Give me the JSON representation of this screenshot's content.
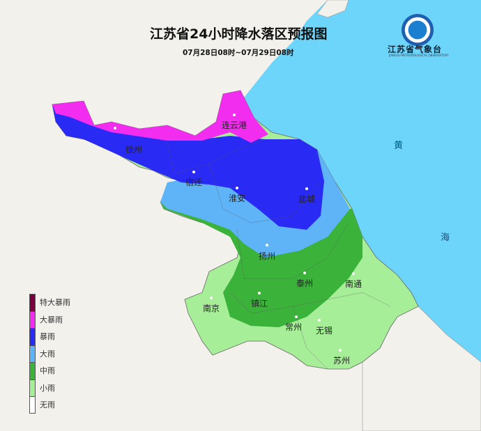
{
  "header": {
    "title": "江苏省24小时降水落区预报图",
    "period": "07月28日08时~07月29日08时"
  },
  "logo": {
    "text": "江苏省气象台",
    "subtext": "JIANGSU METEOROLOGICAL OBSERVATORY"
  },
  "sea_labels": [
    "黄",
    "海"
  ],
  "cities": [
    {
      "name": "连云港"
    },
    {
      "name": "徐州"
    },
    {
      "name": "宿迁"
    },
    {
      "name": "淮安"
    },
    {
      "name": "盐城"
    },
    {
      "name": "扬州"
    },
    {
      "name": "泰州"
    },
    {
      "name": "南通"
    },
    {
      "name": "南京"
    },
    {
      "name": "镇江"
    },
    {
      "name": "常州"
    },
    {
      "name": "无锡"
    },
    {
      "name": "苏州"
    }
  ],
  "legend": [
    {
      "label": "特大暴雨",
      "color": "#7a0040"
    },
    {
      "label": "大暴雨",
      "color": "#f22df0"
    },
    {
      "label": "暴雨",
      "color": "#2a2af5"
    },
    {
      "label": "大雨",
      "color": "#5fb4f8"
    },
    {
      "label": "中雨",
      "color": "#3bb33b"
    },
    {
      "label": "小雨",
      "color": "#a6ee98"
    },
    {
      "label": "无雨",
      "color": "#ffffff"
    }
  ],
  "colors": {
    "sea": "#6dd4fa",
    "land": "#f3f1ec"
  }
}
